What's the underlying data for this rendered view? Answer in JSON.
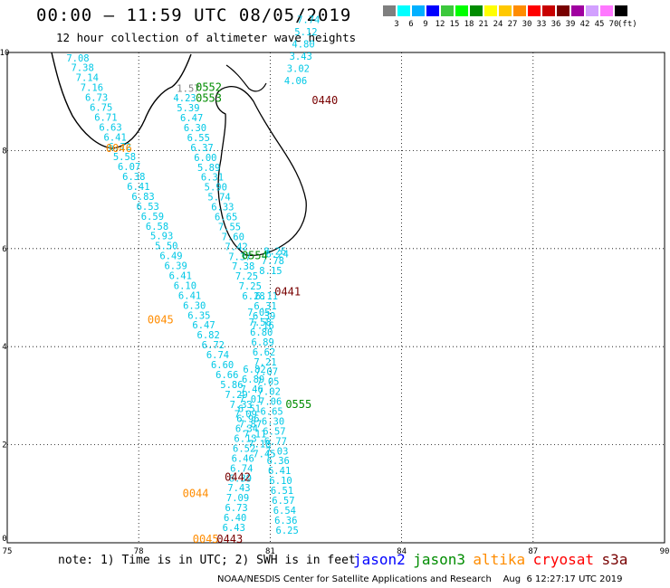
{
  "header": {
    "title": "00:00 – 11:59 UTC 08/05/2019",
    "subtitle": "12 hour collection of altimeter wave heights"
  },
  "color_scale": {
    "unit_label": "(ft)",
    "bins": [
      {
        "label": "3",
        "color": "#7f7f7f"
      },
      {
        "label": "6",
        "color": "#00ffff"
      },
      {
        "label": "9",
        "color": "#00b0ff"
      },
      {
        "label": "12",
        "color": "#0000ff"
      },
      {
        "label": "15",
        "color": "#3cc83c"
      },
      {
        "label": "18",
        "color": "#00ff00"
      },
      {
        "label": "21",
        "color": "#008c00"
      },
      {
        "label": "24",
        "color": "#ffff00"
      },
      {
        "label": "27",
        "color": "#ffc800"
      },
      {
        "label": "30",
        "color": "#ff8c00"
      },
      {
        "label": "33",
        "color": "#ff0000"
      },
      {
        "label": "36",
        "color": "#c80000"
      },
      {
        "label": "39",
        "color": "#780000"
      },
      {
        "label": "42",
        "color": "#a000a0"
      },
      {
        "label": "45",
        "color": "#d2a0ff"
      },
      {
        "label": "70",
        "color": "#ff78ff"
      },
      {
        "label": "",
        "color": "#000000"
      }
    ]
  },
  "map": {
    "x_ticks": [
      "75",
      "78",
      "81",
      "84",
      "87",
      "90"
    ],
    "y_ticks": [
      "0",
      "2",
      "4",
      "6",
      "8",
      "10"
    ],
    "lon_range": [
      75,
      90
    ],
    "lat_range": [
      0,
      10
    ]
  },
  "colors": {
    "swh": "#00c8e6",
    "jason3_pass": "#008c00",
    "altika_pass": "#ff8c00",
    "s3a_pass": "#780000"
  },
  "tracks": [
    {
      "name": "track-a",
      "start_lon": 76.35,
      "start_lat": 9.82,
      "lon_step": 0.1064,
      "lat_step": -0.2019,
      "values": [
        "7.08",
        "7.38",
        "7.14",
        "7.16",
        "6.73",
        "6.75",
        "6.71",
        "6.63",
        "6.41",
        "6.72",
        "5.58",
        "6.07",
        "6.38",
        "6.41",
        "6.83",
        "6.53",
        "6.59",
        "6.58",
        "5.93",
        "5.50",
        "6.49",
        "6.39",
        "6.41",
        "6.10",
        "6.41",
        "6.30",
        "6.35",
        "6.47",
        "6.82",
        "6.72",
        "6.74",
        "6.60",
        "6.66",
        "5.86",
        "7.29",
        "7.33",
        "7.09",
        "7.87",
        "7.11",
        "7.18",
        "7.45"
      ]
    },
    {
      "name": "track-b",
      "start_lon": 78.79,
      "start_lat": 9.0,
      "lon_step": 0.0785,
      "lat_step": -0.2019,
      "values": [
        "4.23",
        "5.39",
        "6.47",
        "6.30",
        "6.55",
        "6.37",
        "6.00",
        "5.89",
        "6.31",
        "5.90",
        "5.74",
        "6.33",
        "6.65",
        "7.55",
        "7.60",
        "7.42",
        "7.37",
        "7.38",
        "7.25",
        "7.25",
        "6.28"
      ]
    },
    {
      "name": "track-b-low",
      "start_lon": 80.38,
      "start_lat": 3.47,
      "lon_step": -0.0294,
      "lat_step": -0.2019,
      "values": [
        "6.82",
        "6.89",
        "7.46",
        "7.01",
        "6.51",
        "6.96",
        "6.34",
        "6.13",
        "6.52",
        "6.46",
        "6.74",
        "6.39",
        "7.43",
        "7.09",
        "6.73",
        "6.40",
        "6.43"
      ]
    },
    {
      "name": "track-c",
      "start_lon": 80.48,
      "start_lat": 4.63,
      "lon_step": 0.0294,
      "lat_step": -0.2019,
      "values": [
        "7.05",
        "7.58",
        "6.80",
        "6.89",
        "6.62",
        "7.21",
        "7.07",
        "7.05",
        "7.02",
        "7.06",
        "6.65",
        "6.30",
        "6.57",
        "6.77",
        "7.03",
        "6.36",
        "6.41",
        "6.10",
        "6.51",
        "6.57",
        "6.54",
        "6.36",
        "6.25"
      ]
    },
    {
      "name": "track-d",
      "start_lon": 81.32,
      "start_lat": 9.35,
      "lon_step": 0.0587,
      "lat_step": 0.25,
      "values": [
        "4.06",
        "3.02",
        "3.43",
        "4.80",
        "5.12",
        "7.74"
      ]
    },
    {
      "name": "track-e",
      "start_lon": 80.75,
      "start_lat": 5.48,
      "lon_step": 0.05,
      "lat_step": 0.2,
      "values": [
        "8.15",
        "7.78",
        "8.25"
      ]
    },
    {
      "name": "track-f",
      "start_lon": 80.57,
      "start_lat": 4.36,
      "lon_step": 0.0294,
      "lat_step": 0.2,
      "values": [
        "7.16",
        "6.39",
        "6.31",
        "6.11"
      ]
    }
  ],
  "misc_values": [
    {
      "text": "1.57",
      "lon": 78.87,
      "lat": 9.2
    },
    {
      "text": "6.24",
      "lon": 80.9,
      "lat": 5.82
    }
  ],
  "pass_labels": [
    {
      "text": "0046",
      "lon": 77.25,
      "lat": 7.97,
      "mission": "altika"
    },
    {
      "text": "0045",
      "lon": 78.2,
      "lat": 4.47,
      "mission": "altika"
    },
    {
      "text": "0044",
      "lon": 79.0,
      "lat": 0.93,
      "mission": "altika"
    },
    {
      "text": "0045",
      "lon": 79.23,
      "lat": 0.0,
      "mission": "altika"
    },
    {
      "text": "0552",
      "lon": 79.3,
      "lat": 9.22,
      "mission": "jason3"
    },
    {
      "text": "0553",
      "lon": 79.3,
      "lat": 8.99,
      "mission": "jason3"
    },
    {
      "text": "0554",
      "lon": 80.35,
      "lat": 5.78,
      "mission": "jason3"
    },
    {
      "text": "0555",
      "lon": 81.35,
      "lat": 2.75,
      "mission": "jason3"
    },
    {
      "text": "0440",
      "lon": 81.95,
      "lat": 8.95,
      "mission": "s3a"
    },
    {
      "text": "0441",
      "lon": 81.1,
      "lat": 5.05,
      "mission": "s3a"
    },
    {
      "text": "0442",
      "lon": 79.96,
      "lat": 1.26,
      "mission": "s3a"
    },
    {
      "text": "0443",
      "lon": 79.78,
      "lat": 0.0,
      "mission": "s3a"
    }
  ],
  "footer": {
    "note": "note: 1) Time is in UTC; 2) SWH is in feet",
    "legend": [
      {
        "label": "jason2",
        "color": "#0000ff"
      },
      {
        "label": "jason3",
        "color": "#008c00"
      },
      {
        "label": "altika",
        "color": "#ff8c00"
      },
      {
        "label": "cryosat",
        "color": "#ff0000"
      },
      {
        "label": "s3a",
        "color": "#780000"
      }
    ],
    "credit": "NOAA/NESDIS Center for Satellite Applications and Research    Aug  6 12:27:17 UTC 2019"
  }
}
